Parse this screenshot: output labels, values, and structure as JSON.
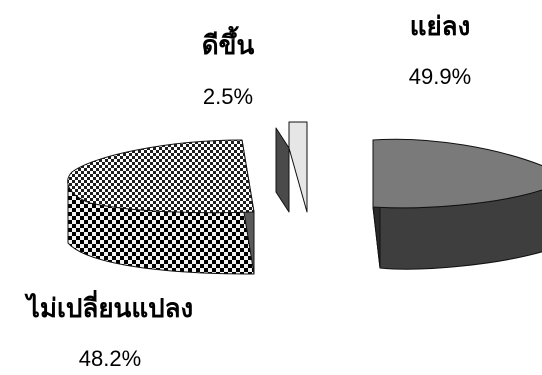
{
  "chart_data": {
    "type": "pie",
    "style": "3d-exploded",
    "title": "",
    "slices": [
      {
        "label": "แย่ลง",
        "value": 49.9,
        "value_label": "49.9%",
        "fill": "dark-gray"
      },
      {
        "label": "ดีขึ้น",
        "value": 2.5,
        "value_label": "2.5%",
        "fill": "light-gray"
      },
      {
        "label": "ไม่เปลี่ยนแปลง",
        "value": 48.2,
        "value_label": "48.2%",
        "fill": "checkered-pattern"
      }
    ],
    "legend": "none",
    "colors": {
      "worse_top": "#7a7a7a",
      "worse_side": "#3e3e3e",
      "better_top": "#e6e6e6",
      "better_side": "#4a4a4a",
      "unchanged_side": "#5a5a5a",
      "edge": "#111111"
    }
  }
}
